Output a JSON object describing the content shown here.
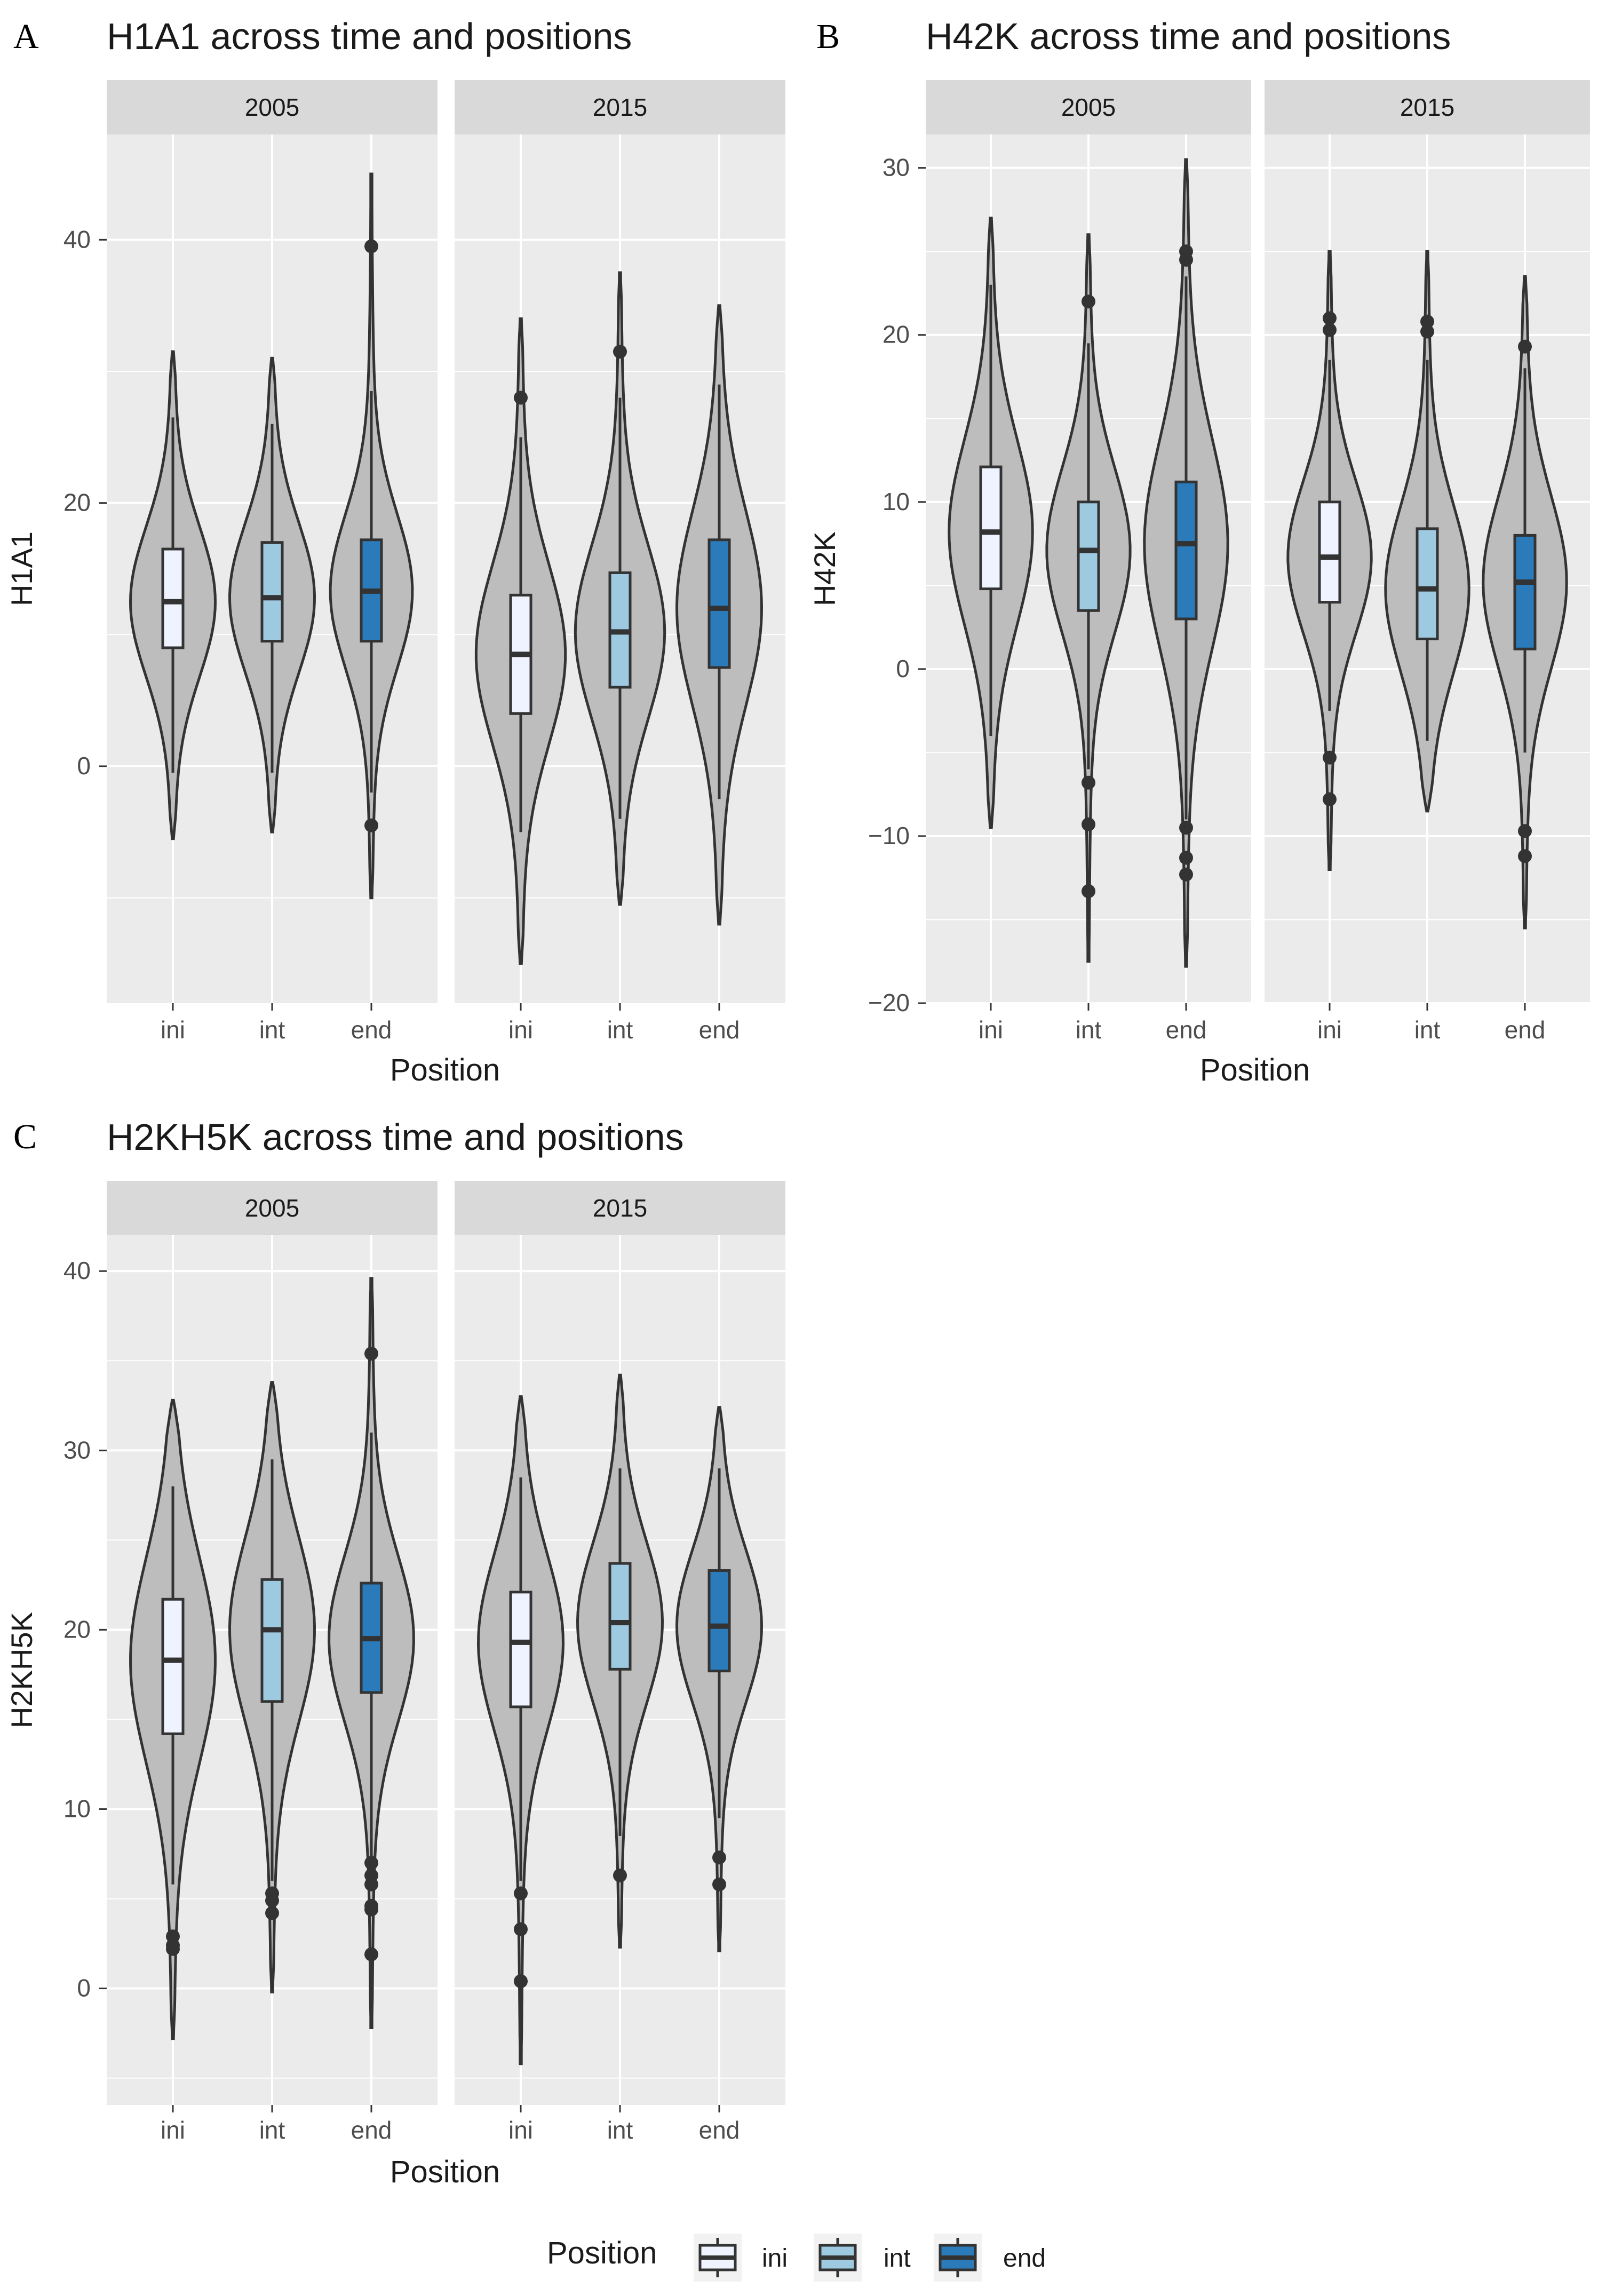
{
  "chart_data": [
    {
      "type": "violin",
      "letter": "A",
      "title": "H1A1 across time and positions",
      "xlabel": "Position",
      "ylabel": "H1A1",
      "ylim": [
        -18,
        48
      ],
      "y_breaks": [
        0,
        20,
        40
      ],
      "y_tick_labels": [
        "0",
        "20",
        "40"
      ],
      "categories": [
        "ini",
        "int",
        "end"
      ],
      "facets": [
        {
          "label": "2005",
          "groups": [
            {
              "position": "ini",
              "min": -5.5,
              "q1": 9.0,
              "median": 12.5,
              "q3": 16.5,
              "max": 31.5,
              "whisker_low": -0.5,
              "whisker_high": 26.5,
              "width_scale": 0.95,
              "outliers": []
            },
            {
              "position": "int",
              "min": -5.0,
              "q1": 9.5,
              "median": 12.8,
              "q3": 17.0,
              "max": 31.0,
              "whisker_low": -0.5,
              "whisker_high": 26.0,
              "width_scale": 0.95,
              "outliers": []
            },
            {
              "position": "end",
              "min": -10.0,
              "q1": 9.5,
              "median": 13.3,
              "q3": 17.2,
              "max": 45.0,
              "whisker_low": -2.0,
              "whisker_high": 28.5,
              "width_scale": 0.92,
              "outliers": [
                39.5,
                -4.5
              ]
            }
          ]
        },
        {
          "label": "2015",
          "groups": [
            {
              "position": "ini",
              "min": -15.0,
              "q1": 4.0,
              "median": 8.5,
              "q3": 13.0,
              "max": 34.0,
              "whisker_low": -5.0,
              "whisker_high": 25.0,
              "width_scale": 1.0,
              "outliers": [
                28.0
              ]
            },
            {
              "position": "int",
              "min": -10.5,
              "q1": 6.0,
              "median": 10.2,
              "q3": 14.7,
              "max": 37.5,
              "whisker_low": -4.0,
              "whisker_high": 28.0,
              "width_scale": 1.0,
              "outliers": [
                31.5
              ]
            },
            {
              "position": "end",
              "min": -12.0,
              "q1": 7.5,
              "median": 12.0,
              "q3": 17.2,
              "max": 35.0,
              "whisker_low": -2.5,
              "whisker_high": 29.0,
              "width_scale": 0.95,
              "outliers": []
            }
          ]
        }
      ]
    },
    {
      "type": "violin",
      "letter": "B",
      "title": "H42K across time and positions",
      "xlabel": "Position",
      "ylabel": "H42K",
      "ylim": [
        -20,
        32
      ],
      "y_breaks": [
        -20,
        -10,
        0,
        10,
        20,
        30
      ],
      "y_tick_labels": [
        "−20",
        "−10",
        "0",
        "10",
        "20",
        "30"
      ],
      "categories": [
        "ini",
        "int",
        "end"
      ],
      "facets": [
        {
          "label": "2005",
          "groups": [
            {
              "position": "ini",
              "min": -9.5,
              "q1": 4.8,
              "median": 8.2,
              "q3": 12.1,
              "max": 27.0,
              "whisker_low": -4.0,
              "whisker_high": 23.0,
              "width_scale": 0.95,
              "outliers": []
            },
            {
              "position": "int",
              "min": -17.5,
              "q1": 3.5,
              "median": 7.1,
              "q3": 10.0,
              "max": 26.0,
              "whisker_low": -6.0,
              "whisker_high": 19.5,
              "width_scale": 0.95,
              "outliers": [
                22.0,
                -6.8,
                -9.3,
                -13.3
              ]
            },
            {
              "position": "end",
              "min": -17.8,
              "q1": 3.0,
              "median": 7.5,
              "q3": 11.2,
              "max": 30.5,
              "whisker_low": -9.0,
              "whisker_high": 23.5,
              "width_scale": 0.95,
              "outliers": [
                25.0,
                24.5,
                -9.5,
                -11.3,
                -12.3
              ]
            }
          ]
        },
        {
          "label": "2015",
          "groups": [
            {
              "position": "ini",
              "min": -12.0,
              "q1": 4.0,
              "median": 6.7,
              "q3": 10.0,
              "max": 25.0,
              "whisker_low": -2.5,
              "whisker_high": 18.5,
              "width_scale": 0.95,
              "outliers": [
                21.0,
                20.3,
                -5.3,
                -7.8
              ]
            },
            {
              "position": "int",
              "min": -8.5,
              "q1": 1.8,
              "median": 4.8,
              "q3": 8.4,
              "max": 25.0,
              "whisker_low": -4.3,
              "whisker_high": 18.5,
              "width_scale": 0.95,
              "outliers": [
                20.8,
                20.2
              ]
            },
            {
              "position": "end",
              "min": -15.5,
              "q1": 1.2,
              "median": 5.2,
              "q3": 8.0,
              "max": 23.5,
              "whisker_low": -5.0,
              "whisker_high": 18.0,
              "width_scale": 0.95,
              "outliers": [
                19.3,
                -9.7,
                -11.2
              ]
            }
          ]
        }
      ]
    },
    {
      "type": "violin",
      "letter": "C",
      "title": "H2KH5K across time and positions",
      "xlabel": "Position",
      "ylabel": "H2KH5K",
      "ylim": [
        -6.5,
        42
      ],
      "y_breaks": [
        0,
        10,
        20,
        30,
        40
      ],
      "y_tick_labels": [
        "0",
        "10",
        "20",
        "30",
        "40"
      ],
      "categories": [
        "ini",
        "int",
        "end"
      ],
      "facets": [
        {
          "label": "2005",
          "groups": [
            {
              "position": "ini",
              "min": -2.8,
              "q1": 14.2,
              "median": 18.3,
              "q3": 21.7,
              "max": 32.8,
              "whisker_low": 5.8,
              "whisker_high": 28.0,
              "width_scale": 0.95,
              "outliers": [
                2.9,
                2.4,
                2.2
              ]
            },
            {
              "position": "int",
              "min": -0.2,
              "q1": 16.0,
              "median": 20.0,
              "q3": 22.8,
              "max": 33.8,
              "whisker_low": 6.0,
              "whisker_high": 29.5,
              "width_scale": 0.95,
              "outliers": [
                5.3,
                4.9,
                4.2
              ]
            },
            {
              "position": "end",
              "min": -2.2,
              "q1": 16.5,
              "median": 19.5,
              "q3": 22.6,
              "max": 39.6,
              "whisker_low": 7.0,
              "whisker_high": 31.0,
              "width_scale": 0.95,
              "outliers": [
                35.4,
                7.0,
                6.3,
                5.8,
                4.6,
                4.4,
                1.9
              ]
            }
          ]
        },
        {
          "label": "2015",
          "groups": [
            {
              "position": "ini",
              "min": -4.2,
              "q1": 15.7,
              "median": 19.3,
              "q3": 22.1,
              "max": 33.0,
              "whisker_low": 6.0,
              "whisker_high": 28.5,
              "width_scale": 0.95,
              "outliers": [
                5.3,
                3.3,
                0.4
              ]
            },
            {
              "position": "int",
              "min": 2.3,
              "q1": 17.8,
              "median": 20.4,
              "q3": 23.7,
              "max": 34.2,
              "whisker_low": 8.5,
              "whisker_high": 29.0,
              "width_scale": 0.95,
              "outliers": [
                6.3
              ]
            },
            {
              "position": "end",
              "min": 2.1,
              "q1": 17.7,
              "median": 20.2,
              "q3": 23.3,
              "max": 32.4,
              "whisker_low": 9.5,
              "whisker_high": 29.0,
              "width_scale": 0.95,
              "outliers": [
                7.3,
                5.8
              ]
            }
          ]
        }
      ]
    }
  ],
  "legend": {
    "title": "Position",
    "items": [
      {
        "label": "ini",
        "color": "#eff3ff"
      },
      {
        "label": "int",
        "color": "#9ecae1"
      },
      {
        "label": "end",
        "color": "#2b7bba"
      }
    ]
  },
  "colors": {
    "violin_fill": "#bdbdbd",
    "panel_bg": "#ebebeb",
    "strip_bg": "#d9d9d9",
    "grid": "#ffffff",
    "stroke": "#333333"
  }
}
